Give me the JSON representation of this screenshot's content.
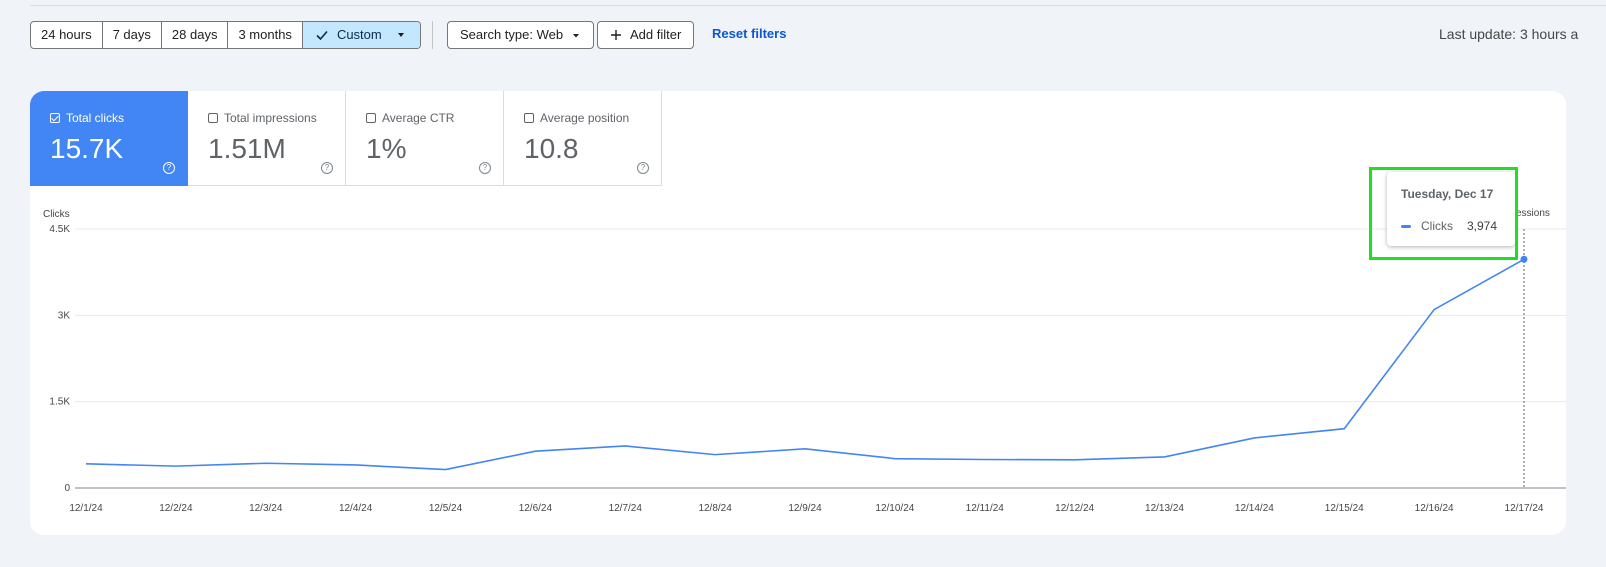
{
  "toolbar": {
    "date_range": [
      "24 hours",
      "7 days",
      "28 days",
      "3 months"
    ],
    "custom_label": "Custom",
    "search_type_label": "Search type: Web",
    "add_filter_label": "Add filter",
    "reset_filters_label": "Reset filters",
    "last_update": "Last update: 3 hours a"
  },
  "metrics": [
    {
      "label": "Total clicks",
      "value": "15.7K",
      "checked": true
    },
    {
      "label": "Total impressions",
      "value": "1.51M",
      "checked": false
    },
    {
      "label": "Average CTR",
      "value": "1%",
      "checked": false
    },
    {
      "label": "Average position",
      "value": "10.8",
      "checked": false
    }
  ],
  "tooltip": {
    "date": "Tuesday, Dec 17",
    "series": "Clicks",
    "value": "3,974"
  },
  "impressions_label_partial": "essions",
  "chart_data": {
    "type": "line",
    "ylabel": "Clicks",
    "ylim": [
      0,
      4500
    ],
    "yticks": [
      0,
      1500,
      3000,
      4500
    ],
    "ytick_labels": [
      "0",
      "1.5K",
      "3K",
      "4.5K"
    ],
    "categories": [
      "12/1/24",
      "12/2/24",
      "12/3/24",
      "12/4/24",
      "12/5/24",
      "12/6/24",
      "12/7/24",
      "12/8/24",
      "12/9/24",
      "12/10/24",
      "12/11/24",
      "12/12/24",
      "12/13/24",
      "12/14/24",
      "12/15/24",
      "12/16/24",
      "12/17/24"
    ],
    "series": [
      {
        "name": "Clicks",
        "color": "#4285f4",
        "values": [
          420,
          380,
          430,
          400,
          320,
          640,
          730,
          580,
          680,
          510,
          495,
          490,
          540,
          870,
          1030,
          3100,
          3974
        ]
      }
    ],
    "grid": true,
    "highlight_index": 16
  }
}
